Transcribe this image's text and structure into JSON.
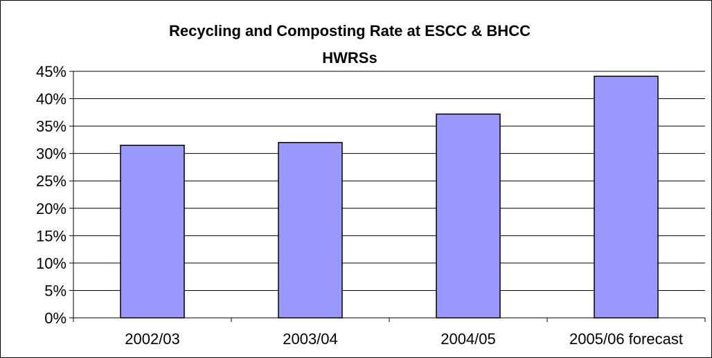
{
  "chart_data": {
    "type": "bar",
    "title": "Recycling and Composting Rate at ESCC & BHCC HWRSs",
    "title_lines": [
      "Recycling and Composting Rate at ESCC & BHCC",
      "HWRSs"
    ],
    "categories": [
      "2002/03",
      "2003/04",
      "2004/05",
      "2005/06 forecast"
    ],
    "values": [
      31.5,
      32.0,
      37.2,
      44.1
    ],
    "ylim": [
      0,
      45
    ],
    "yticks": [
      "0%",
      "5%",
      "10%",
      "15%",
      "20%",
      "25%",
      "30%",
      "35%",
      "40%",
      "45%"
    ],
    "xlabel": "",
    "ylabel": "",
    "grid": true,
    "legend": "none",
    "colors": {
      "bar": "#9999ff",
      "bar_stroke": "#000000",
      "grid": "#000000"
    }
  }
}
